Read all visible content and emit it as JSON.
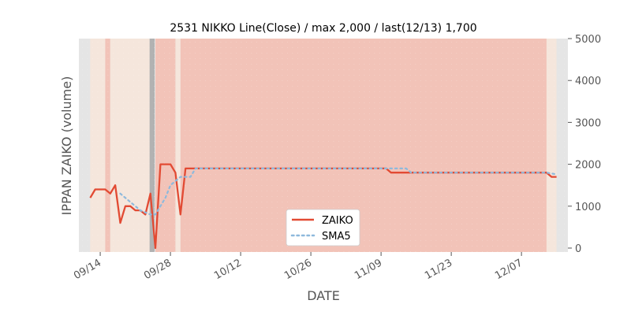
{
  "chart_data": {
    "type": "line",
    "title": "2531 NIKKO Line(Close) / max 2,000 / last(12/13) 1,700",
    "xlabel": "DATE",
    "ylabel": "IPPAN ZAIKO (volume)",
    "ylim": [
      0,
      5000
    ],
    "y_ticks": [
      0,
      1000,
      2000,
      3000,
      4000,
      5000
    ],
    "y_tick_labels": [
      "0",
      "1000",
      "2000",
      "3000",
      "4000",
      "5000"
    ],
    "x_tick_labels": [
      "09/14",
      "09/28",
      "10/12",
      "10/26",
      "11/09",
      "11/23",
      "12/07"
    ],
    "x_tick_dates": [
      "2017-09-14",
      "2017-09-28",
      "2017-10-12",
      "2017-10-26",
      "2017-11-09",
      "2017-11-23",
      "2017-12-07"
    ],
    "xlim": [
      "2017-09-11",
      "2017-12-15"
    ],
    "y_axis_side": "right",
    "grid": false,
    "legend_placement": "bottom-center",
    "colors": {
      "zaiko": "#e24a33",
      "sma5": "#8eb9dc",
      "band_pink": "#f2c3b8",
      "band_cream": "#f5e6dc",
      "band_grey": "#e5e5e5",
      "marker": "#b2b2b2"
    },
    "background_bands": [
      {
        "start": "2017-09-11",
        "end": "2017-09-12",
        "color": "band_grey"
      },
      {
        "start": "2017-09-12",
        "end": "2017-09-15",
        "color": "band_cream"
      },
      {
        "start": "2017-09-15",
        "end": "2017-09-16",
        "color": "band_pink"
      },
      {
        "start": "2017-09-16",
        "end": "2017-09-17",
        "color": "band_cream"
      },
      {
        "start": "2017-09-17",
        "end": "2017-09-24",
        "color": "band_cream"
      },
      {
        "start": "2017-09-24",
        "end": "2017-09-25",
        "color": "band_grey"
      },
      {
        "start": "2017-09-25",
        "end": "2017-09-29",
        "color": "band_pink"
      },
      {
        "start": "2017-09-29",
        "end": "2017-09-30",
        "color": "band_cream"
      },
      {
        "start": "2017-09-30",
        "end": "2017-12-12",
        "color": "band_pink"
      },
      {
        "start": "2017-12-12",
        "end": "2017-12-14",
        "color": "band_cream"
      },
      {
        "start": "2017-12-14",
        "end": "2017-12-15",
        "color": "band_grey"
      }
    ],
    "marker_line": {
      "start": "2017-09-24",
      "end": "2017-09-25"
    },
    "series": [
      {
        "name": "ZAIKO",
        "style": "solid",
        "x": [
          "2017-09-12",
          "2017-09-13",
          "2017-09-14",
          "2017-09-15",
          "2017-09-16",
          "2017-09-17",
          "2017-09-18",
          "2017-09-19",
          "2017-09-20",
          "2017-09-21",
          "2017-09-22",
          "2017-09-23",
          "2017-09-24",
          "2017-09-25",
          "2017-09-26",
          "2017-09-27",
          "2017-09-28",
          "2017-09-29",
          "2017-09-30",
          "2017-10-01",
          "2017-11-10",
          "2017-11-11",
          "2017-12-12",
          "2017-12-13",
          "2017-12-14"
        ],
        "values": [
          1200,
          1400,
          1400,
          1400,
          1300,
          1500,
          600,
          1000,
          1000,
          900,
          900,
          800,
          1300,
          0,
          2000,
          2000,
          2000,
          1800,
          800,
          1900,
          1900,
          1800,
          1800,
          1700,
          1700
        ]
      },
      {
        "name": "SMA5",
        "style": "dotted",
        "x": [
          "2017-09-18",
          "2017-09-19",
          "2017-09-20",
          "2017-09-21",
          "2017-09-22",
          "2017-09-23",
          "2017-09-24",
          "2017-09-25",
          "2017-09-26",
          "2017-09-27",
          "2017-09-28",
          "2017-09-29",
          "2017-09-30",
          "2017-10-01",
          "2017-10-02",
          "2017-10-03",
          "2017-11-14",
          "2017-11-15",
          "2017-12-12",
          "2017-12-13",
          "2017-12-14"
        ],
        "values": [
          1300,
          1200,
          1100,
          1000,
          900,
          850,
          800,
          800,
          1000,
          1200,
          1500,
          1600,
          1700,
          1700,
          1700,
          1900,
          1900,
          1800,
          1800,
          1780,
          1760
        ]
      }
    ]
  }
}
